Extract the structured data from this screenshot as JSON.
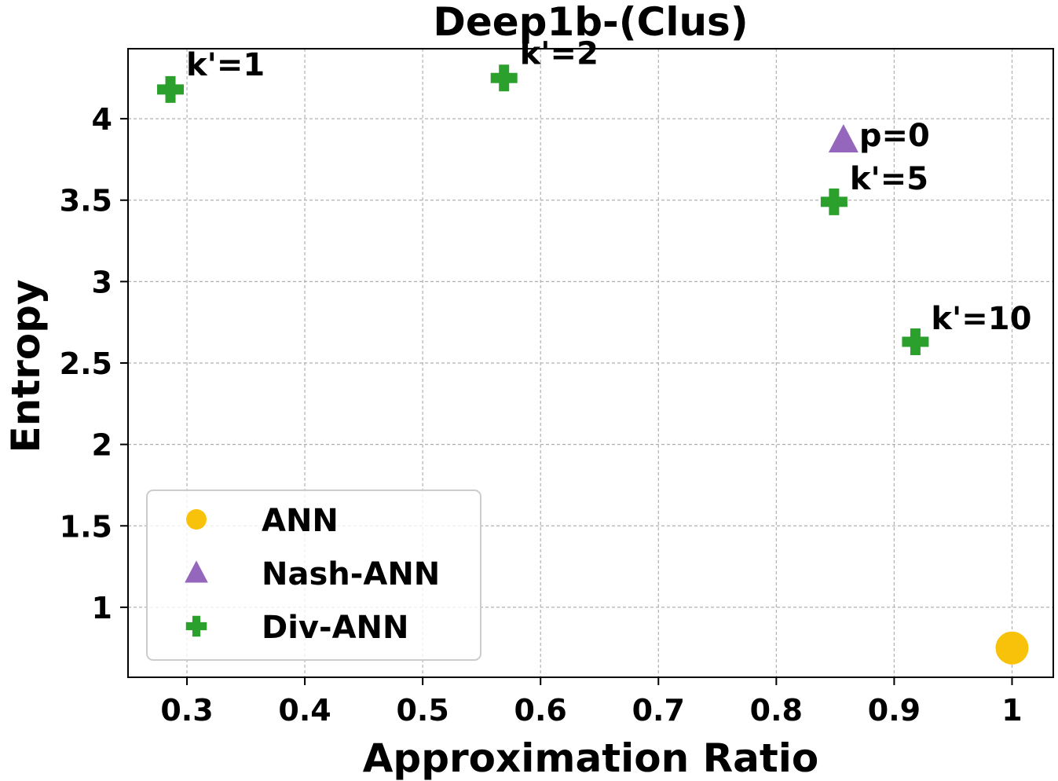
{
  "chart_data": {
    "type": "scatter",
    "title": "Deep1b-(Clus)",
    "xlabel": "Approximation Ratio",
    "ylabel": "Entropy",
    "xlim": [
      0.25,
      1.035
    ],
    "ylim": [
      0.57,
      4.43
    ],
    "xticks": [
      0.3,
      0.4,
      0.5,
      0.6,
      0.7,
      0.8,
      0.9,
      1
    ],
    "xtick_labels": [
      "0.3",
      "0.4",
      "0.5",
      "0.6",
      "0.7",
      "0.8",
      "0.9",
      "1"
    ],
    "yticks": [
      1,
      1.5,
      2,
      2.5,
      3,
      3.5,
      4
    ],
    "ytick_labels": [
      "1",
      "1.5",
      "2",
      "2.5",
      "3",
      "3.5",
      "4"
    ],
    "grid": true,
    "legend_position": "lower-left",
    "series": [
      {
        "name": "ANN",
        "marker": "circle",
        "color": "#f9c20a",
        "points": [
          {
            "x": 1.0,
            "y": 0.75,
            "label": ""
          }
        ]
      },
      {
        "name": "Nash-ANN",
        "marker": "triangle",
        "color": "#9467bd",
        "points": [
          {
            "x": 0.857,
            "y": 3.87,
            "label": "p=0"
          }
        ]
      },
      {
        "name": "Div-ANN",
        "marker": "plus",
        "color": "#2ca02c",
        "points": [
          {
            "x": 0.286,
            "y": 4.18,
            "label": "k'=1"
          },
          {
            "x": 0.569,
            "y": 4.25,
            "label": "k'=2"
          },
          {
            "x": 0.849,
            "y": 3.49,
            "label": "k'=5"
          },
          {
            "x": 0.918,
            "y": 2.63,
            "label": "k'=10"
          }
        ]
      }
    ]
  }
}
